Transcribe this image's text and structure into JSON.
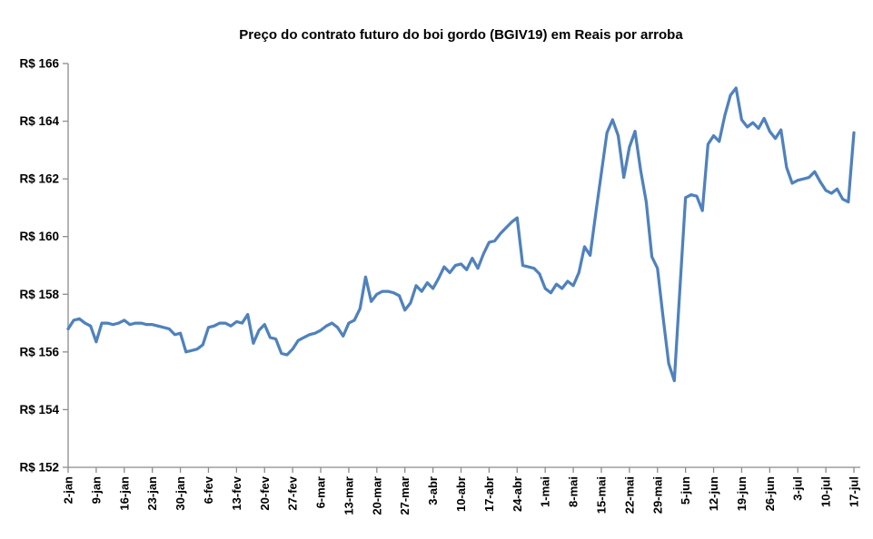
{
  "chart_data": {
    "type": "line",
    "title": "Preço do contrato futuro do boi gordo (BGIV19) em Reais por arroba",
    "currency_prefix": "R$",
    "ylim": [
      152,
      166
    ],
    "grid": false,
    "legend": "none",
    "line_color": "#4F81BD",
    "axis_color": "#8c8c8c",
    "label_color": "#000000",
    "y_ticks": [
      {
        "value": 166,
        "label": "R$ 166"
      },
      {
        "value": 164,
        "label": "R$ 164"
      },
      {
        "value": 162,
        "label": "R$ 162"
      },
      {
        "value": 160,
        "label": "R$ 160"
      },
      {
        "value": 158,
        "label": "R$ 158"
      },
      {
        "value": 156,
        "label": "R$ 156"
      },
      {
        "value": 154,
        "label": "R$ 154"
      },
      {
        "value": 152,
        "label": "R$ 152"
      }
    ],
    "x_tick_interval": 5,
    "x_tick_labels": [
      "2-jan",
      "9-jan",
      "16-jan",
      "23-jan",
      "30-jan",
      "6-fev",
      "13-fev",
      "20-fev",
      "27-fev",
      "6-mar",
      "13-mar",
      "20-mar",
      "27-mar",
      "3-abr",
      "10-abr",
      "17-abr",
      "24-abr",
      "1-mai",
      "8-mai",
      "15-mai",
      "22-mai",
      "29-mai",
      "5-jun",
      "12-jun",
      "19-jun",
      "26-jun",
      "3-jul",
      "10-jul",
      "17-jul"
    ],
    "series": [
      {
        "name": "BGIV19",
        "x": [
          "2-jan",
          "3-jan",
          "4-jan",
          "7-jan",
          "8-jan",
          "9-jan",
          "10-jan",
          "11-jan",
          "14-jan",
          "15-jan",
          "16-jan",
          "17-jan",
          "18-jan",
          "21-jan",
          "22-jan",
          "23-jan",
          "24-jan",
          "25-jan",
          "28-jan",
          "29-jan",
          "30-jan",
          "31-jan",
          "1-fev",
          "4-fev",
          "5-fev",
          "6-fev",
          "7-fev",
          "8-fev",
          "11-fev",
          "12-fev",
          "13-fev",
          "14-fev",
          "15-fev",
          "18-fev",
          "19-fev",
          "20-fev",
          "21-fev",
          "22-fev",
          "25-fev",
          "26-fev",
          "27-fev",
          "28-fev",
          "1-mar",
          "4-mar",
          "5-mar",
          "6-mar",
          "7-mar",
          "8-mar",
          "11-mar",
          "12-mar",
          "13-mar",
          "14-mar",
          "15-mar",
          "18-mar",
          "19-mar",
          "20-mar",
          "21-mar",
          "22-mar",
          "25-mar",
          "26-mar",
          "27-mar",
          "28-mar",
          "29-mar",
          "1-abr",
          "2-abr",
          "3-abr",
          "4-abr",
          "5-abr",
          "8-abr",
          "9-abr",
          "10-abr",
          "11-abr",
          "12-abr",
          "15-abr",
          "16-abr",
          "17-abr",
          "18-abr",
          "19-abr",
          "22-abr",
          "23-abr",
          "24-abr",
          "25-abr",
          "26-abr",
          "29-abr",
          "30-abr",
          "1-mai",
          "2-mai",
          "3-mai",
          "6-mai",
          "7-mai",
          "8-mai",
          "9-mai",
          "10-mai",
          "13-mai",
          "14-mai",
          "15-mai",
          "16-mai",
          "17-mai",
          "20-mai",
          "21-mai",
          "22-mai",
          "23-mai",
          "24-mai",
          "27-mai",
          "28-mai",
          "29-mai",
          "30-mai",
          "31-mai",
          "3-jun",
          "4-jun",
          "5-jun",
          "6-jun",
          "7-jun",
          "10-jun",
          "11-jun",
          "12-jun",
          "13-jun",
          "14-jun",
          "17-jun",
          "18-jun",
          "19-jun",
          "20-jun",
          "21-jun",
          "24-jun",
          "25-jun",
          "26-jun",
          "27-jun",
          "28-jun",
          "1-jul",
          "2-jul",
          "3-jul",
          "4-jul",
          "5-jul",
          "8-jul",
          "9-jul",
          "10-jul",
          "11-jul",
          "12-jul",
          "15-jul",
          "16-jul",
          "17-jul"
        ],
        "values": [
          156.8,
          157.1,
          157.15,
          157.0,
          156.9,
          156.35,
          157.0,
          157.0,
          156.95,
          157.0,
          157.1,
          156.95,
          157.0,
          157.0,
          156.95,
          156.95,
          156.9,
          156.85,
          156.8,
          156.6,
          156.65,
          156.0,
          156.05,
          156.1,
          156.25,
          156.85,
          156.9,
          157.0,
          157.0,
          156.9,
          157.05,
          157.0,
          157.3,
          156.3,
          156.75,
          156.95,
          156.5,
          156.45,
          155.95,
          155.9,
          156.1,
          156.4,
          156.5,
          156.6,
          156.65,
          156.75,
          156.9,
          157.0,
          156.85,
          156.55,
          157.0,
          157.1,
          157.5,
          158.6,
          157.75,
          158.0,
          158.1,
          158.1,
          158.05,
          157.95,
          157.45,
          157.7,
          158.3,
          158.1,
          158.4,
          158.2,
          158.55,
          158.95,
          158.75,
          159.0,
          159.05,
          158.85,
          159.25,
          158.9,
          159.4,
          159.8,
          159.85,
          160.1,
          160.3,
          160.5,
          160.65,
          159.0,
          158.95,
          158.9,
          158.7,
          158.2,
          158.05,
          158.35,
          158.2,
          158.45,
          158.3,
          158.75,
          159.65,
          159.35,
          160.8,
          162.2,
          163.6,
          164.05,
          163.5,
          162.05,
          163.1,
          163.65,
          162.3,
          161.2,
          159.3,
          158.9,
          157.2,
          155.6,
          155.0,
          158.2,
          161.35,
          161.45,
          161.4,
          160.9,
          163.2,
          163.5,
          163.3,
          164.2,
          164.9,
          165.15,
          164.05,
          163.8,
          163.95,
          163.75,
          164.1,
          163.65,
          163.4,
          163.7,
          162.4,
          161.85,
          161.95,
          162.0,
          162.05,
          162.25,
          161.9,
          161.6,
          161.5,
          161.65,
          161.3,
          161.2,
          163.6
        ]
      }
    ]
  }
}
